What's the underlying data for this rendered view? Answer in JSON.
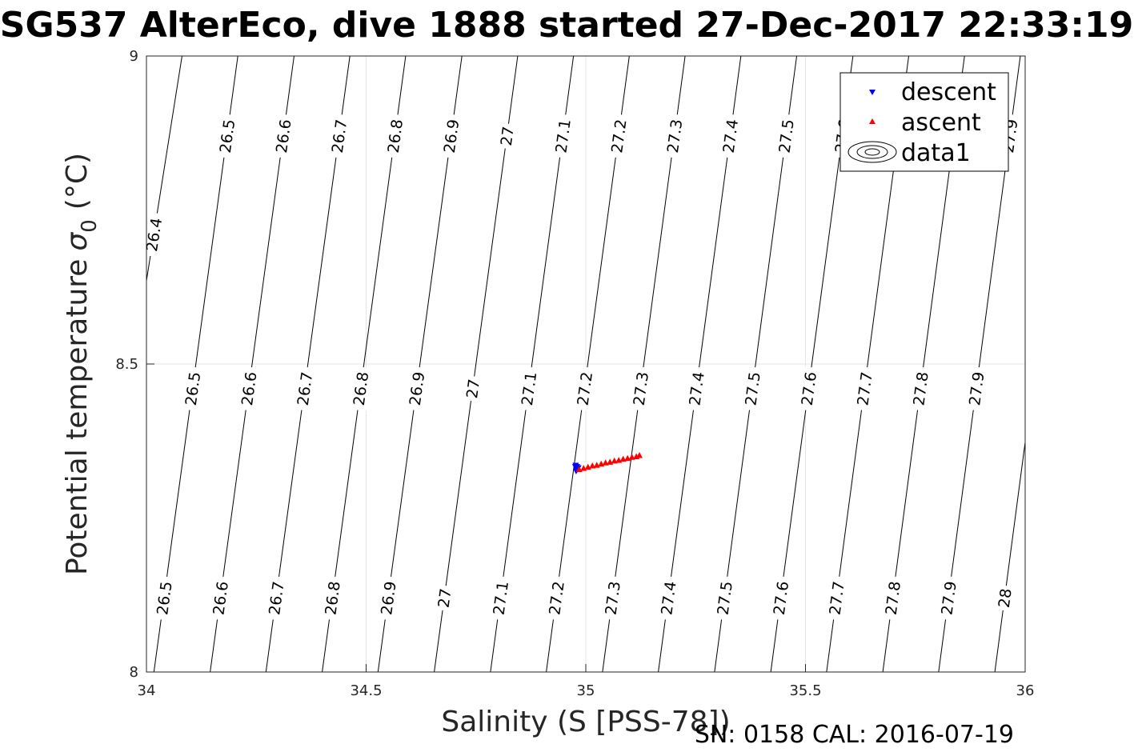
{
  "chart_data": {
    "type": "scatter",
    "title": "SG537 AlterEco, dive 1888 started 27-Dec-2017 22:33:19",
    "xlabel": "Salinity (S [PSS-78])",
    "ylabel_main": "Potential temperature",
    "ylabel_sym": "σ",
    "ylabel_sub": "0",
    "ylabel_unit": "(°C)",
    "xlim": [
      34,
      36
    ],
    "ylim": [
      8,
      9
    ],
    "x_ticks": [
      "34",
      "34.5",
      "35",
      "35.5",
      "36"
    ],
    "y_ticks": [
      "8",
      "8.5",
      "9"
    ],
    "grid": true,
    "legend_position": "top-right",
    "legend": [
      "descent",
      "ascent",
      "data1"
    ],
    "series": [
      {
        "name": "descent",
        "color": "#0000ff",
        "marker": "triangle-down",
        "points": [
          [
            34.976,
            8.333
          ],
          [
            34.978,
            8.331
          ],
          [
            34.98,
            8.333
          ],
          [
            34.978,
            8.326
          ],
          [
            34.981,
            8.329
          ],
          [
            34.977,
            8.335
          ],
          [
            34.983,
            8.331
          ]
        ]
      },
      {
        "name": "ascent",
        "color": "#ff0000",
        "marker": "triangle-up",
        "points": [
          [
            34.985,
            8.329
          ],
          [
            34.995,
            8.331
          ],
          [
            35.005,
            8.333
          ],
          [
            35.015,
            8.335
          ],
          [
            35.025,
            8.336
          ],
          [
            35.035,
            8.338
          ],
          [
            35.045,
            8.34
          ],
          [
            35.055,
            8.341
          ],
          [
            35.065,
            8.343
          ],
          [
            35.075,
            8.344
          ],
          [
            35.085,
            8.346
          ],
          [
            35.095,
            8.347
          ],
          [
            35.105,
            8.349
          ],
          [
            35.115,
            8.35
          ],
          [
            35.122,
            8.352
          ]
        ]
      }
    ],
    "contours": {
      "name": "data1",
      "color": "#000000",
      "levels": [
        26.4,
        26.5,
        26.6,
        26.7,
        26.8,
        26.9,
        27,
        27.1,
        27.2,
        27.3,
        27.4,
        27.5,
        27.6,
        27.7,
        27.8,
        27.9,
        28
      ],
      "label_texts": [
        "26.4",
        "26.5",
        "26.6",
        "26.7",
        "26.8",
        "26.9",
        "27",
        "27.1",
        "27.2",
        "27.3",
        "27.4",
        "27.5",
        "27.6",
        "27.7",
        "27.8",
        "27.9",
        "28"
      ],
      "x_at_t8": [
        33.859,
        34.017,
        34.145,
        34.272,
        34.4,
        34.527,
        34.655,
        34.783,
        34.91,
        35.038,
        35.165,
        35.293,
        35.421,
        35.548,
        35.676,
        35.803,
        35.931
      ],
      "x_at_t9": [
        34.081,
        34.208,
        34.336,
        34.463,
        34.59,
        34.718,
        34.845,
        34.972,
        35.099,
        35.226,
        35.353,
        35.48,
        35.608,
        35.735,
        35.862,
        35.989,
        36.116
      ],
      "label_rows": [
        {
          "t": 8.12,
          "levels": [
            26.5,
            26.6,
            26.7,
            26.8,
            26.9,
            27,
            27.1,
            27.2,
            27.3,
            27.4,
            27.5,
            27.6,
            27.7,
            27.8,
            27.9,
            28
          ]
        },
        {
          "t": 8.46,
          "levels": [
            26.5,
            26.6,
            26.7,
            26.8,
            26.9,
            27,
            27.1,
            27.2,
            27.3,
            27.4,
            27.5,
            27.6,
            27.7,
            27.8,
            27.9
          ]
        },
        {
          "t": 8.87,
          "levels": [
            26.5,
            26.6,
            26.7,
            26.8,
            26.9,
            27,
            27.1,
            27.2,
            27.3,
            27.4,
            27.5,
            27.6,
            27.9
          ]
        },
        {
          "t": 8.71,
          "levels": [
            26.4
          ]
        }
      ]
    }
  },
  "footer": "SN: 0158  CAL: 2016-07-19"
}
